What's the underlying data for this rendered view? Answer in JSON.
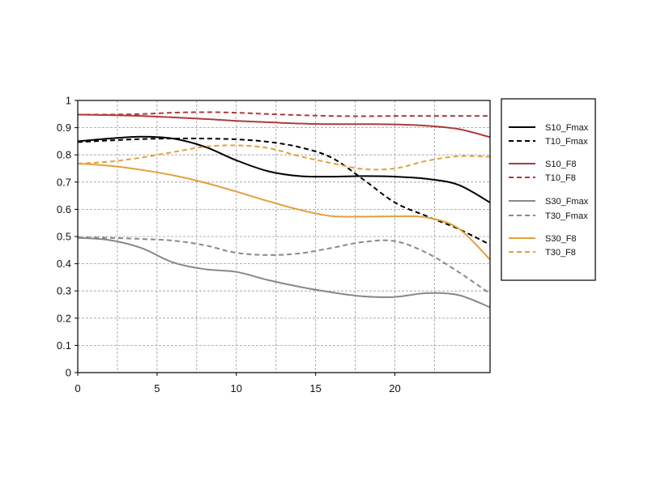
{
  "chart_data": {
    "type": "line",
    "title": "",
    "xlabel": "",
    "ylabel": "",
    "xlim": [
      0,
      26
    ],
    "ylim": [
      0,
      1
    ],
    "x_ticks": [
      0,
      5,
      10,
      15,
      20
    ],
    "x_tick_labels": [
      "0",
      "5",
      "10",
      "15",
      "20"
    ],
    "y_ticks": [
      0,
      0.1,
      0.2,
      0.3,
      0.4,
      0.5,
      0.6,
      0.7,
      0.8,
      0.9,
      1
    ],
    "y_tick_labels": [
      "0",
      "0.1",
      "0.2",
      "0.3",
      "0.4",
      "0.5",
      "0.6",
      "0.7",
      "0.8",
      "0.9",
      "1"
    ],
    "grid": true,
    "legend_position": "right",
    "x": [
      0,
      2,
      4,
      6,
      8,
      10,
      12,
      14,
      16,
      18,
      20,
      22,
      24,
      26
    ],
    "series": [
      {
        "name": "S10_Fmax",
        "color": "#000000",
        "dash": "solid",
        "values": [
          0.85,
          0.86,
          0.867,
          0.86,
          0.83,
          0.78,
          0.74,
          0.722,
          0.72,
          0.722,
          0.72,
          0.712,
          0.69,
          0.625
        ]
      },
      {
        "name": "T10_Fmax",
        "color": "#000000",
        "dash": "dashed",
        "values": [
          0.847,
          0.853,
          0.858,
          0.86,
          0.86,
          0.857,
          0.848,
          0.828,
          0.79,
          0.71,
          0.625,
          0.575,
          0.528,
          0.47
        ]
      },
      {
        "name": "S10_F8",
        "color": "#b03a3a",
        "dash": "solid",
        "values": [
          0.948,
          0.946,
          0.943,
          0.938,
          0.932,
          0.925,
          0.92,
          0.915,
          0.913,
          0.913,
          0.912,
          0.907,
          0.895,
          0.865
        ]
      },
      {
        "name": "T10_F8",
        "color": "#b03a3a",
        "dash": "dashed",
        "values": [
          0.948,
          0.948,
          0.95,
          0.955,
          0.957,
          0.955,
          0.95,
          0.946,
          0.943,
          0.942,
          0.943,
          0.943,
          0.943,
          0.943
        ]
      },
      {
        "name": "S30_Fmax",
        "color": "#888888",
        "dash": "solid",
        "values": [
          0.495,
          0.487,
          0.458,
          0.405,
          0.38,
          0.37,
          0.34,
          0.315,
          0.295,
          0.28,
          0.278,
          0.292,
          0.285,
          0.24
        ]
      },
      {
        "name": "T30_Fmax",
        "color": "#888888",
        "dash": "dashed",
        "values": [
          0.497,
          0.495,
          0.491,
          0.485,
          0.468,
          0.44,
          0.432,
          0.438,
          0.458,
          0.48,
          0.483,
          0.44,
          0.37,
          0.29
        ]
      },
      {
        "name": "S30_F8",
        "color": "#e3a03c",
        "dash": "solid",
        "values": [
          0.768,
          0.76,
          0.745,
          0.725,
          0.698,
          0.665,
          0.63,
          0.598,
          0.575,
          0.573,
          0.574,
          0.57,
          0.53,
          0.415
        ]
      },
      {
        "name": "T30_F8",
        "color": "#e3a03c",
        "dash": "dashed",
        "values": [
          0.768,
          0.775,
          0.79,
          0.81,
          0.83,
          0.835,
          0.825,
          0.795,
          0.77,
          0.748,
          0.75,
          0.778,
          0.795,
          0.793
        ]
      }
    ]
  }
}
